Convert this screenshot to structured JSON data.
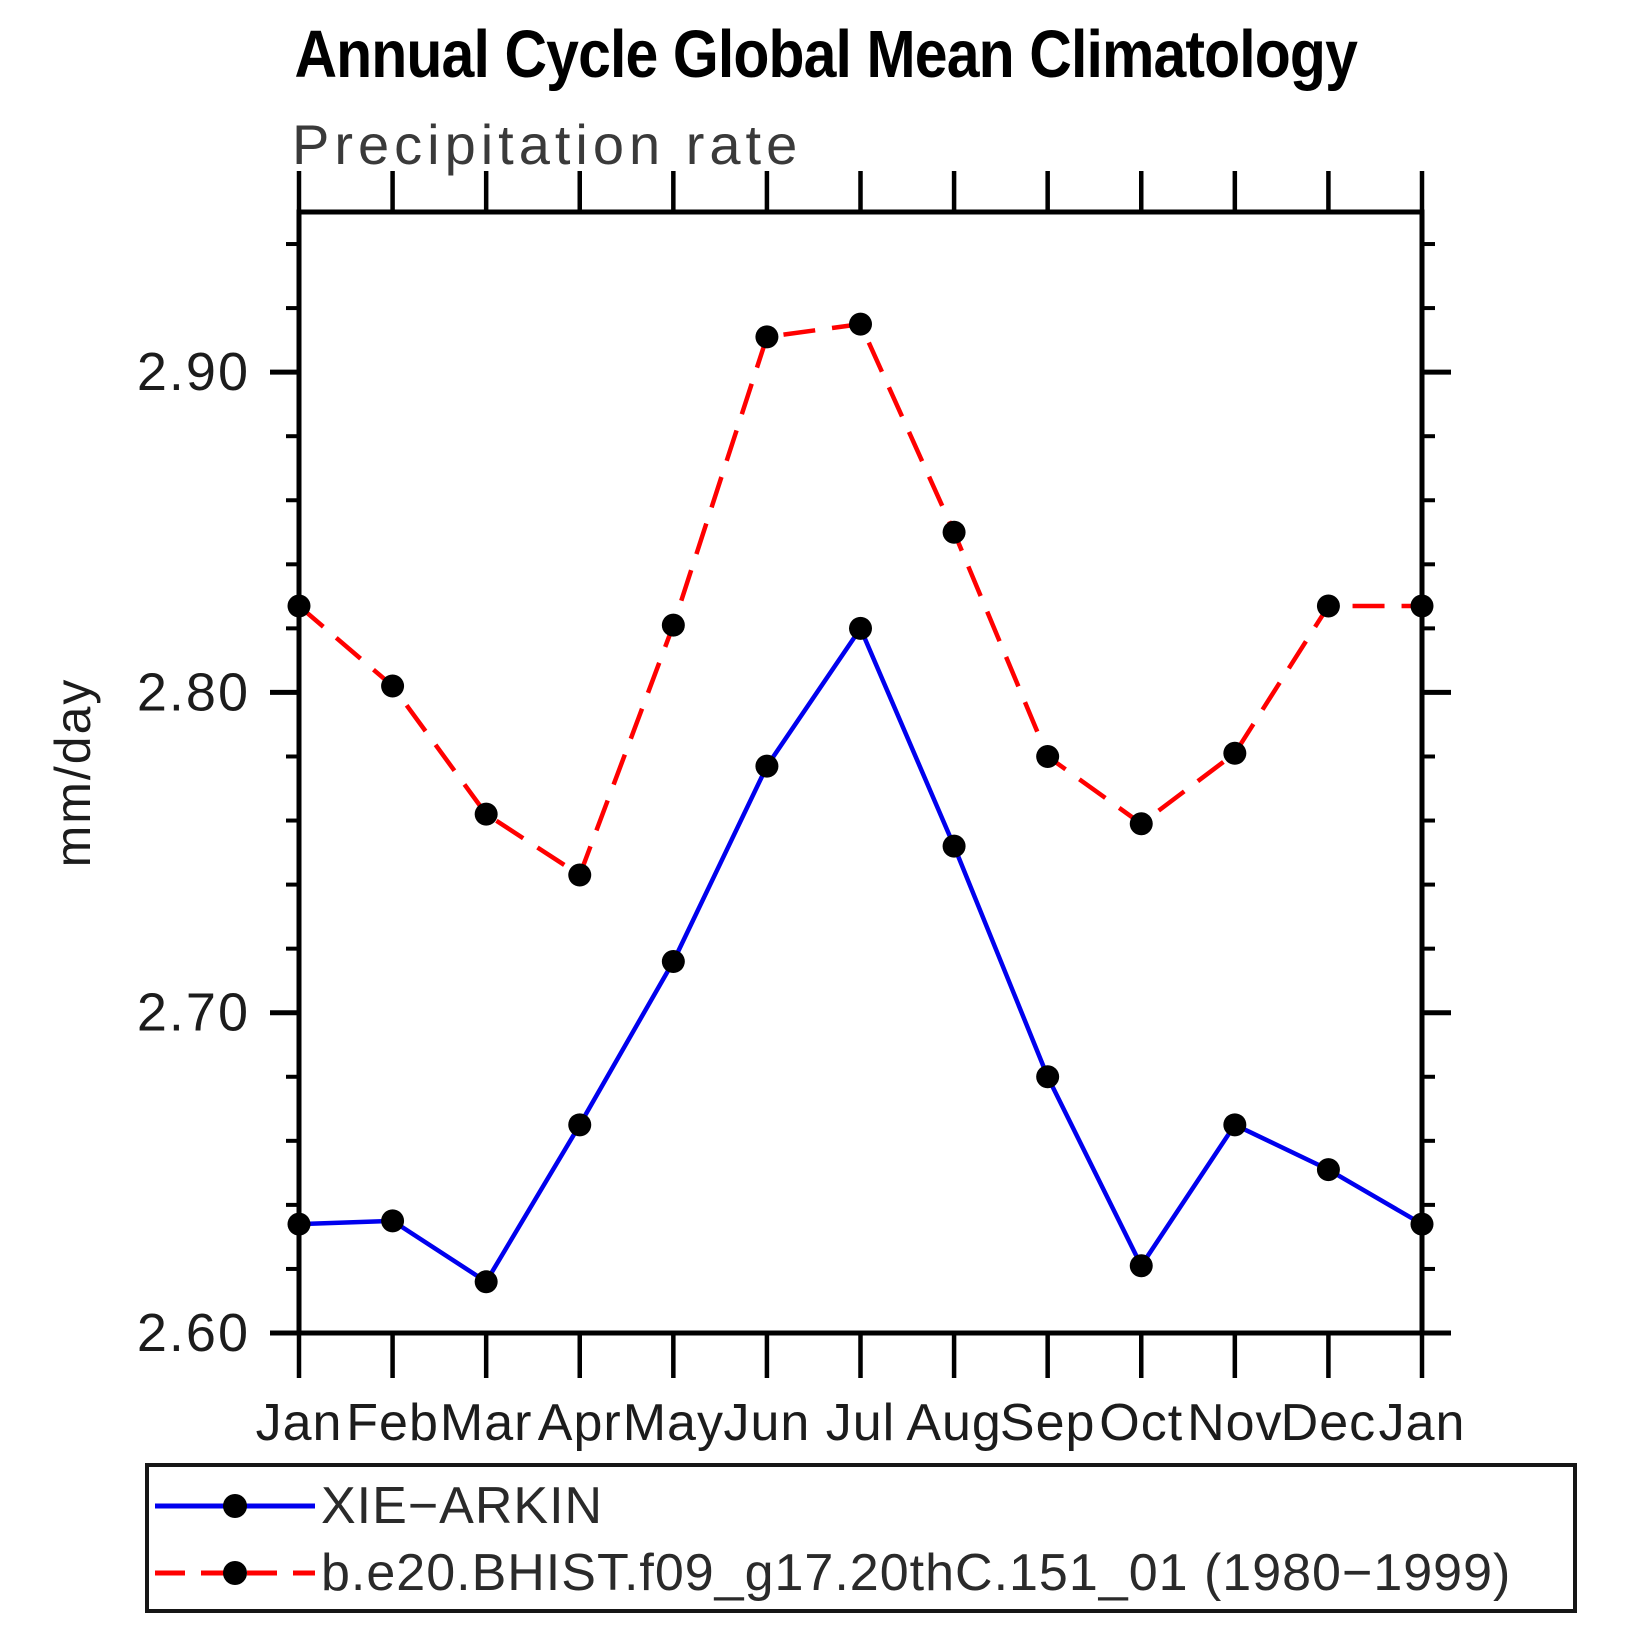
{
  "chart_data": {
    "type": "line",
    "title": "Annual Cycle Global Mean Climatology",
    "subtitle": "Precipitation rate",
    "ylabel": "mm/day",
    "categories": [
      "Jan",
      "Feb",
      "Mar",
      "Apr",
      "May",
      "Jun",
      "Jul",
      "Aug",
      "Sep",
      "Oct",
      "Nov",
      "Dec",
      "Jan"
    ],
    "series": [
      {
        "name": "XIE−ARKIN",
        "color": "#0000ee",
        "line_style": "solid",
        "marker": "filled-circle",
        "marker_color": "#000000",
        "values": [
          2.634,
          2.635,
          2.616,
          2.665,
          2.716,
          2.777,
          2.82,
          2.752,
          2.68,
          2.621,
          2.665,
          2.651,
          2.634
        ]
      },
      {
        "name": "b.e20.BHIST.f09_g17.20thC.151_01 (1980−1999)",
        "color": "#ff0000",
        "line_style": "dashed",
        "marker": "filled-circle",
        "marker_color": "#000000",
        "values": [
          2.827,
          2.802,
          2.762,
          2.743,
          2.821,
          2.911,
          2.915,
          2.85,
          2.78,
          2.759,
          2.781,
          2.827,
          2.827
        ]
      }
    ],
    "ylim": [
      2.6,
      2.95
    ],
    "y_major_ticks": [
      2.6,
      2.7,
      2.8,
      2.9
    ],
    "y_minor_step": 0.02,
    "grid": "off",
    "legend_position": "bottom-left-box",
    "axis_color": "#000000",
    "tick_label_format": "0.00"
  }
}
